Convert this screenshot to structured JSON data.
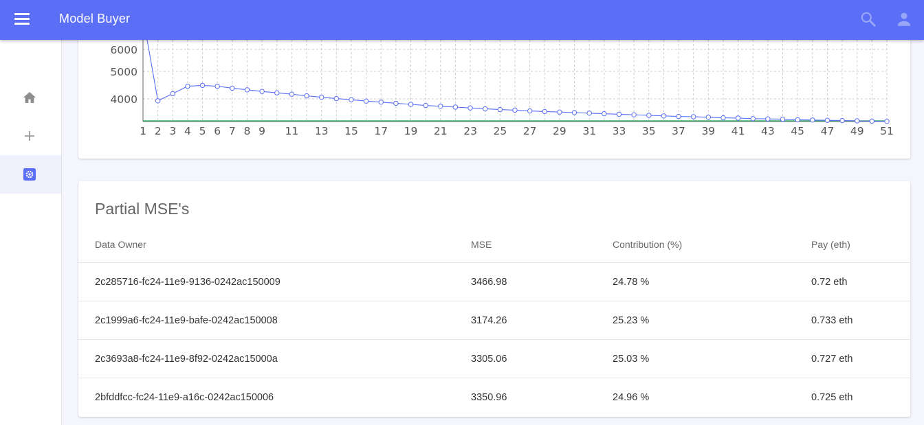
{
  "appbar": {
    "title": "Model Buyer",
    "menu_icon": "menu-icon",
    "search_icon": "search-icon",
    "account_icon": "account-icon"
  },
  "sidebar": {
    "items": [
      {
        "icon": "home-icon",
        "active": false
      },
      {
        "icon": "plus-icon",
        "active": false
      },
      {
        "icon": "settings-icon",
        "active": true
      }
    ]
  },
  "colors": {
    "primary": "#5a6ef6",
    "line": "#5a6ef6",
    "baseline": "#3cb371",
    "grid": "#cccccc"
  },
  "chart_data": {
    "type": "line",
    "title": "",
    "xlabel": "",
    "ylabel": "",
    "grid": true,
    "y_ticks": [
      4000,
      5000,
      6000
    ],
    "x_ticks": [
      1,
      2,
      3,
      4,
      5,
      6,
      7,
      8,
      9,
      11,
      13,
      15,
      17,
      19,
      21,
      23,
      25,
      27,
      29,
      31,
      33,
      35,
      37,
      39,
      41,
      43,
      45,
      47,
      49,
      51
    ],
    "series": [
      {
        "x": [
          1,
          2,
          3,
          4,
          5,
          6,
          7,
          8,
          9,
          10,
          11,
          12,
          13,
          14,
          15,
          16,
          17,
          18,
          19,
          20,
          21,
          22,
          23,
          24,
          25,
          26,
          27,
          28,
          29,
          30,
          31,
          32,
          33,
          34,
          35,
          36,
          37,
          38,
          39,
          40,
          41,
          42,
          43,
          44,
          45,
          46,
          47,
          48,
          49,
          50,
          51
        ],
        "values": [
          7500,
          3930,
          4190,
          4460,
          4490,
          4460,
          4390,
          4330,
          4270,
          4220,
          4170,
          4110,
          4060,
          4010,
          3970,
          3920,
          3880,
          3840,
          3800,
          3760,
          3730,
          3700,
          3670,
          3640,
          3610,
          3590,
          3560,
          3540,
          3520,
          3500,
          3480,
          3460,
          3440,
          3420,
          3400,
          3380,
          3360,
          3350,
          3330,
          3310,
          3300,
          3280,
          3270,
          3260,
          3240,
          3230,
          3220,
          3210,
          3200,
          3190,
          3180
        ]
      },
      {
        "x": [
          1,
          51
        ],
        "values": [
          3120,
          3120
        ]
      }
    ]
  },
  "table": {
    "title": "Partial MSE's",
    "headers": [
      "Data Owner",
      "MSE",
      "Contribution (%)",
      "Pay (eth)"
    ],
    "rows": [
      [
        "2c285716-fc24-11e9-9136-0242ac150009",
        "3466.98",
        "24.78 %",
        "0.72 eth"
      ],
      [
        "2c1999a6-fc24-11e9-bafe-0242ac150008",
        "3174.26",
        "25.23 %",
        "0.733 eth"
      ],
      [
        "2c3693a8-fc24-11e9-8f92-0242ac15000a",
        "3305.06",
        "25.03 %",
        "0.727 eth"
      ],
      [
        "2bfddfcc-fc24-11e9-a16c-0242ac150006",
        "3350.96",
        "24.96 %",
        "0.725 eth"
      ]
    ]
  }
}
